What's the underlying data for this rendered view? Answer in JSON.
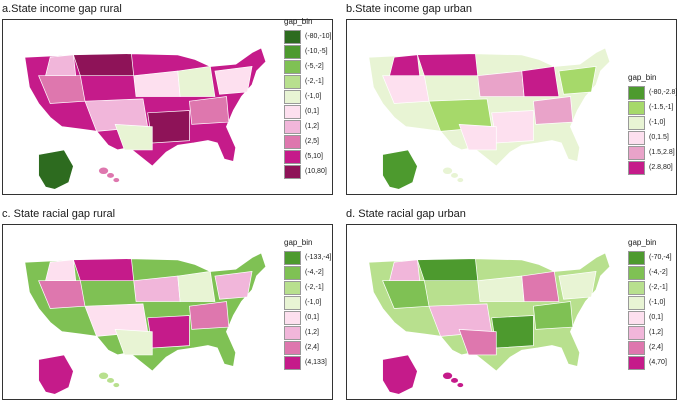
{
  "panels": [
    {
      "title": "a.State income gap rural",
      "legend": {
        "title": "gap_bin",
        "items": [
          {
            "label": "(-80,-10]",
            "color": "#2d6b1f"
          },
          {
            "label": "(-10,-5]",
            "color": "#4d9a2e"
          },
          {
            "label": "(-5,-2]",
            "color": "#7fc154"
          },
          {
            "label": "(-2,-1]",
            "color": "#b8e08e"
          },
          {
            "label": "(-1,0]",
            "color": "#e8f4d4"
          },
          {
            "label": "(0,1]",
            "color": "#fde0ef"
          },
          {
            "label": "(1,2]",
            "color": "#f1b6da"
          },
          {
            "label": "(2,5]",
            "color": "#de77ae"
          },
          {
            "label": "(5,10]",
            "color": "#c51b8a"
          },
          {
            "label": "(10,80]",
            "color": "#8e1358"
          }
        ]
      },
      "map": {
        "main": "#c51b8a",
        "alaska": "#2d6b1f",
        "hawaii": "#de77ae",
        "accents": [
          "#8e1358",
          "#de77ae",
          "#fde0ef",
          "#f1b6da",
          "#e8f4d4"
        ]
      }
    },
    {
      "title": "b.State income gap urban",
      "legend": {
        "title": "gap_bin",
        "items": [
          {
            "label": "(-80,-2.8]",
            "color": "#4d9a2e"
          },
          {
            "label": "(-1.5,-1]",
            "color": "#a6d96a"
          },
          {
            "label": "(-1,0]",
            "color": "#e8f4d4"
          },
          {
            "label": "(0,1.5]",
            "color": "#fde0ef"
          },
          {
            "label": "(1.5,2.8]",
            "color": "#e9a3c9"
          },
          {
            "label": "(2.8,80]",
            "color": "#c51b8a"
          }
        ]
      },
      "map": {
        "main": "#e8f4d4",
        "alaska": "#4d9a2e",
        "hawaii": "#e8f4d4",
        "accents": [
          "#c51b8a",
          "#fde0ef",
          "#e9a3c9",
          "#a6d96a"
        ]
      }
    },
    {
      "title": "c. State racial gap rural",
      "legend": {
        "title": "gap_bin",
        "items": [
          {
            "label": "(-133,-4]",
            "color": "#4d9a2e"
          },
          {
            "label": "(-4,-2]",
            "color": "#7fc154"
          },
          {
            "label": "(-2,-1]",
            "color": "#b8e08e"
          },
          {
            "label": "(-1,0]",
            "color": "#e8f4d4"
          },
          {
            "label": "(0,1]",
            "color": "#fde0ef"
          },
          {
            "label": "(1,2]",
            "color": "#f1b6da"
          },
          {
            "label": "(2,4]",
            "color": "#de77ae"
          },
          {
            "label": "(4,133]",
            "color": "#c51b8a"
          }
        ]
      },
      "map": {
        "main": "#7fc154",
        "alaska": "#c51b8a",
        "hawaii": "#b8e08e",
        "accents": [
          "#c51b8a",
          "#de77ae",
          "#f1b6da",
          "#fde0ef",
          "#e8f4d4"
        ]
      }
    },
    {
      "title": "d. State racial gap urban",
      "legend": {
        "title": "gap_bin",
        "items": [
          {
            "label": "(-70,-4]",
            "color": "#4d9a2e"
          },
          {
            "label": "(-4,-2]",
            "color": "#7fc154"
          },
          {
            "label": "(-2,-1]",
            "color": "#b8e08e"
          },
          {
            "label": "(-1,0]",
            "color": "#e8f4d4"
          },
          {
            "label": "(0,1]",
            "color": "#fde0ef"
          },
          {
            "label": "(1,2]",
            "color": "#f1b6da"
          },
          {
            "label": "(2,4]",
            "color": "#de77ae"
          },
          {
            "label": "(4,70]",
            "color": "#c51b8a"
          }
        ]
      },
      "map": {
        "main": "#b8e08e",
        "alaska": "#c51b8a",
        "hawaii": "#c51b8a",
        "accents": [
          "#4d9a2e",
          "#7fc154",
          "#e8f4d4",
          "#f1b6da",
          "#de77ae"
        ]
      }
    }
  ]
}
